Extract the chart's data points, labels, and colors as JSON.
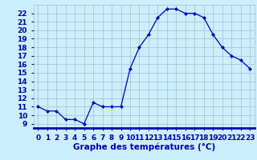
{
  "hours": [
    0,
    1,
    2,
    3,
    4,
    5,
    6,
    7,
    8,
    9,
    10,
    11,
    12,
    13,
    14,
    15,
    16,
    17,
    18,
    19,
    20,
    21,
    22,
    23
  ],
  "temps": [
    11.0,
    10.5,
    10.5,
    9.5,
    9.5,
    9.0,
    11.5,
    11.0,
    11.0,
    11.0,
    15.5,
    18.0,
    19.5,
    21.5,
    22.5,
    22.5,
    22.0,
    22.0,
    21.5,
    19.5,
    18.0,
    17.0,
    16.5,
    15.5
  ],
  "line_color": "#0000bb",
  "marker": "D",
  "marker_size": 2.0,
  "bg_color": "#cceeff",
  "grid_color": "#aabbcc",
  "xlabel": "Graphe des températures (°C)",
  "yticks": [
    9,
    10,
    11,
    12,
    13,
    14,
    15,
    16,
    17,
    18,
    19,
    20,
    21,
    22
  ],
  "ylim": [
    8.5,
    23.0
  ],
  "xlim": [
    -0.5,
    23.5
  ],
  "xlabel_fontsize": 7.5,
  "tick_fontsize": 6.5,
  "label_color": "#0000aa",
  "axis_bottom_color": "#0000aa",
  "linewidth": 0.9
}
